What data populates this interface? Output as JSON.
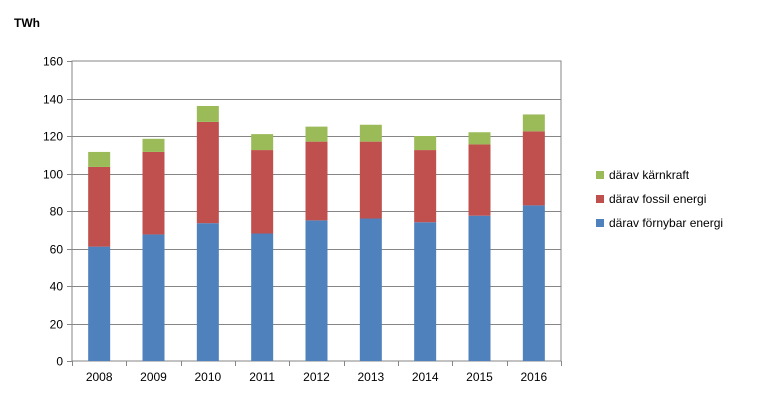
{
  "chart_data": {
    "type": "bar",
    "stacked": true,
    "ylabel": "TWh",
    "ylim": [
      0,
      160
    ],
    "yticks": [
      0,
      20,
      40,
      60,
      80,
      100,
      120,
      140,
      160
    ],
    "grid": true,
    "legend_position": "right",
    "categories": [
      "2008",
      "2009",
      "2010",
      "2011",
      "2012",
      "2013",
      "2014",
      "2015",
      "2016"
    ],
    "series": [
      {
        "name": "därav förnybar energi",
        "color": "#4F81BD",
        "values": [
          61,
          67.5,
          73.5,
          68,
          75,
          76,
          74,
          77.5,
          83
        ]
      },
      {
        "name": "därav fossil energi",
        "color": "#C0504D",
        "values": [
          42.5,
          44,
          54,
          44.5,
          42,
          41,
          38.5,
          38,
          39.5
        ]
      },
      {
        "name": "därav kärnkraft",
        "color": "#9BBB59",
        "values": [
          8,
          7,
          8.5,
          8.5,
          8,
          9,
          7.5,
          6.5,
          9
        ]
      }
    ]
  }
}
